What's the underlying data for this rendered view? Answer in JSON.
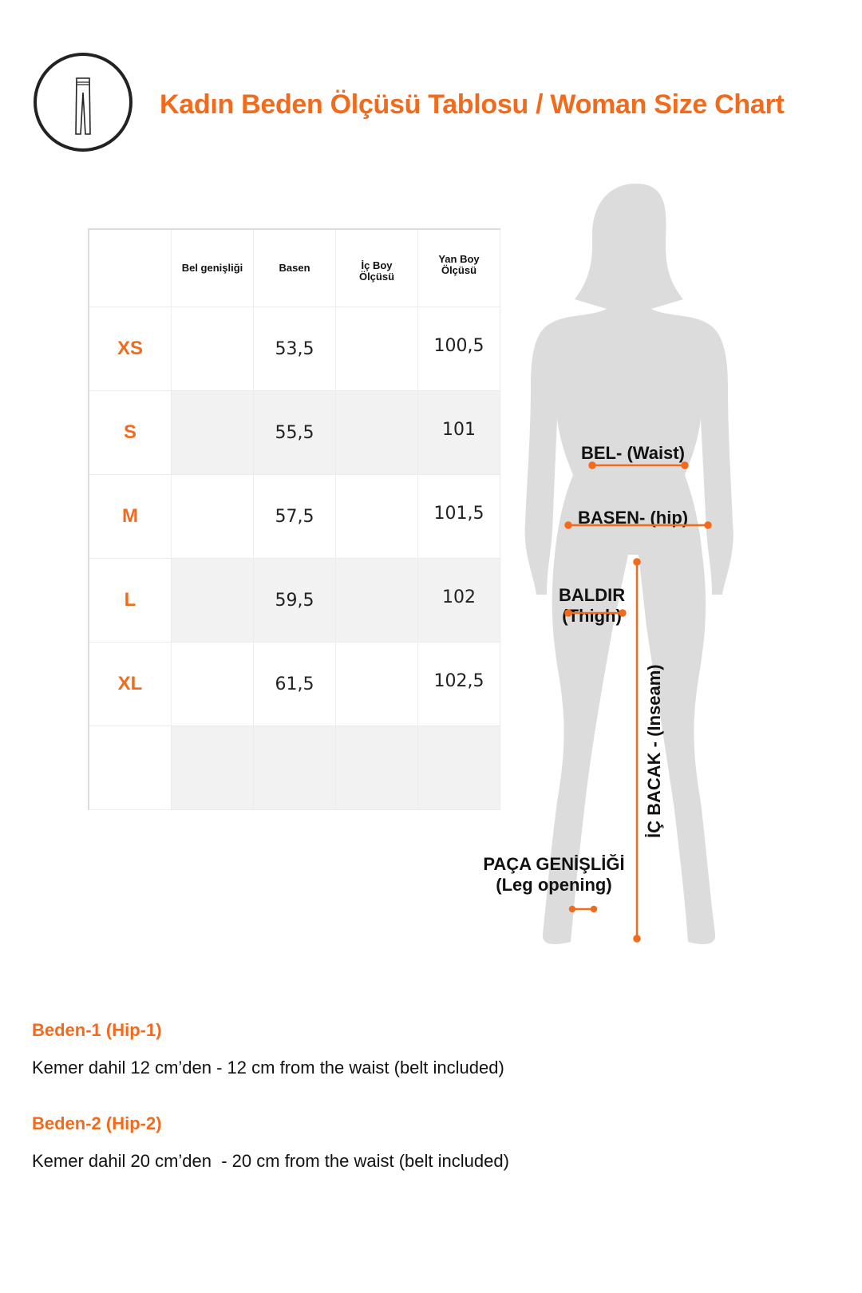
{
  "header": {
    "icon": "leggings-icon",
    "title": "Kadın Beden Ölçüsü Tablosu / Woman Size Chart",
    "accent_color": "#f26a1b"
  },
  "table": {
    "columns": [
      "",
      "Bel genişliği",
      "Basen",
      "İç Boy Ölçüsü",
      "Yan Boy Ölçüsü"
    ],
    "rows": [
      {
        "size": "XS",
        "bel": "",
        "basen": "53,5",
        "ic_boy": "",
        "yan_boy": "100,5"
      },
      {
        "size": "S",
        "bel": "",
        "basen": "55,5",
        "ic_boy": "",
        "yan_boy": "101"
      },
      {
        "size": "M",
        "bel": "",
        "basen": "57,5",
        "ic_boy": "",
        "yan_boy": "101,5"
      },
      {
        "size": "L",
        "bel": "",
        "basen": "59,5",
        "ic_boy": "",
        "yan_boy": "102"
      },
      {
        "size": "XL",
        "bel": "",
        "basen": "61,5",
        "ic_boy": "",
        "yan_boy": "102,5"
      },
      {
        "size": "",
        "bel": "",
        "basen": "",
        "ic_boy": "",
        "yan_boy": ""
      }
    ]
  },
  "figure": {
    "waist": "BEL- (Waist)",
    "hip": "BASEN- (hip)",
    "thigh_1": "BALDIR",
    "thigh_2": "(Thigh)",
    "inseam": "İÇ BACAK - (Inseam)",
    "leg_opening_1": "PAÇA GENİŞLİĞİ",
    "leg_opening_2": "(Leg opening)"
  },
  "notes": [
    {
      "heading": "Beden-1 (Hip-1)",
      "text": "Kemer dahil 12 cm’den - 12 cm from the waist (belt included)"
    },
    {
      "heading": "Beden-2 (Hip-2)",
      "text": "Kemer dahil 20 cm’den  - 20 cm from the waist (belt included)"
    }
  ]
}
